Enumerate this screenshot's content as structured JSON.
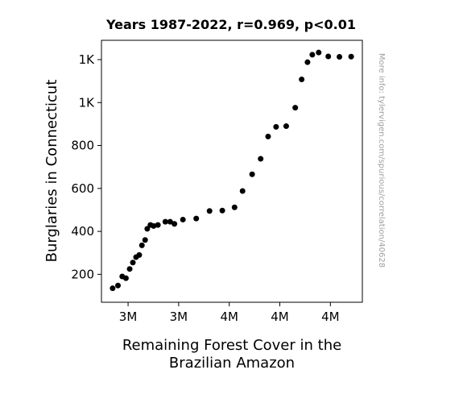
{
  "chart_data": {
    "type": "scatter",
    "title": "Years 1987-2022, r=0.969, p<0.01",
    "xlabel_lines": [
      "Remaining Forest Cover in the",
      "Brazilian Amazon"
    ],
    "ylabel": "Burglaries in Connecticut",
    "watermark": "More info: tylervigen.com/spurious/correlation/40628",
    "xlim": [
      3.33,
      3.82
    ],
    "ylim": [
      70,
      1290
    ],
    "x_ticks": [
      {
        "value": 3.38,
        "label": "3M"
      },
      {
        "value": 3.475,
        "label": "3M"
      },
      {
        "value": 3.57,
        "label": "4M"
      },
      {
        "value": 3.665,
        "label": "4M"
      },
      {
        "value": 3.76,
        "label": "4M"
      }
    ],
    "y_ticks": [
      {
        "value": 200,
        "label": "200"
      },
      {
        "value": 400,
        "label": "400"
      },
      {
        "value": 600,
        "label": "600"
      },
      {
        "value": 800,
        "label": "800"
      },
      {
        "value": 1000,
        "label": "1K"
      },
      {
        "value": 1200,
        "label": "1K"
      }
    ],
    "x": [
      3.351,
      3.361,
      3.369,
      3.376,
      3.383,
      3.389,
      3.395,
      3.401,
      3.406,
      3.412,
      3.416,
      3.422,
      3.428,
      3.436,
      3.45,
      3.459,
      3.467,
      3.483,
      3.508,
      3.533,
      3.557,
      3.58,
      3.595,
      3.613,
      3.629,
      3.643,
      3.658,
      3.677,
      3.694,
      3.706,
      3.717,
      3.726,
      3.738,
      3.756,
      3.777,
      3.799
    ],
    "y": [
      135,
      148,
      190,
      182,
      225,
      255,
      280,
      290,
      335,
      360,
      412,
      430,
      425,
      430,
      445,
      445,
      435,
      455,
      460,
      495,
      497,
      512,
      588,
      666,
      738,
      842,
      887,
      890,
      976,
      1108,
      1188,
      1223,
      1233,
      1215,
      1213,
      1214
    ],
    "marker_color": "#000000"
  }
}
